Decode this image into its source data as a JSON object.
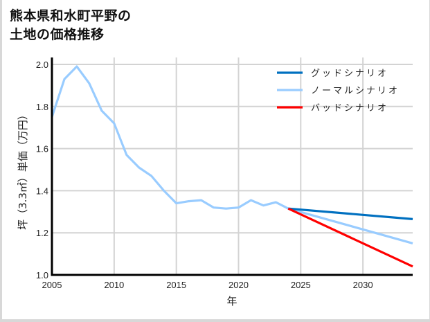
{
  "title_lines": [
    "熊本県和水町平野の",
    "土地の価格推移"
  ],
  "chart_data": {
    "type": "line",
    "title": "熊本県和水町平野の土地の価格推移",
    "xlabel": "年",
    "ylabel": "坪（3.3㎡）単価（万円）",
    "xlim": [
      2005,
      2034
    ],
    "ylim": [
      1.0,
      2.0
    ],
    "x_ticks": [
      2005,
      2010,
      2015,
      2020,
      2025,
      2030
    ],
    "y_ticks": [
      1.0,
      1.2,
      1.4,
      1.6,
      1.8,
      2.0
    ],
    "y_tick_labels": [
      "1.0",
      "1.2",
      "1.4",
      "1.6",
      "1.8",
      "2.0"
    ],
    "grid": true,
    "legend_position": "upper right",
    "legend": [
      "グッドシナリオ",
      "ノーマルシナリオ",
      "バッドシナリオ"
    ],
    "series": [
      {
        "name": "グッドシナリオ",
        "color": "#0070c0",
        "x": [
          2024,
          2034
        ],
        "values": [
          1.315,
          1.265
        ]
      },
      {
        "name": "ノーマルシナリオ",
        "color": "#99ccff",
        "x": [
          2005,
          2006,
          2007,
          2008,
          2009,
          2010,
          2011,
          2012,
          2013,
          2014,
          2015,
          2016,
          2017,
          2018,
          2019,
          2020,
          2021,
          2022,
          2023,
          2024,
          2034
        ],
        "values": [
          1.75,
          1.93,
          1.99,
          1.91,
          1.78,
          1.72,
          1.57,
          1.51,
          1.47,
          1.4,
          1.34,
          1.35,
          1.355,
          1.32,
          1.315,
          1.32,
          1.355,
          1.33,
          1.345,
          1.315,
          1.15
        ]
      },
      {
        "name": "バッドシナリオ",
        "color": "#ff0000",
        "x": [
          2024,
          2034
        ],
        "values": [
          1.315,
          1.04
        ]
      }
    ]
  }
}
